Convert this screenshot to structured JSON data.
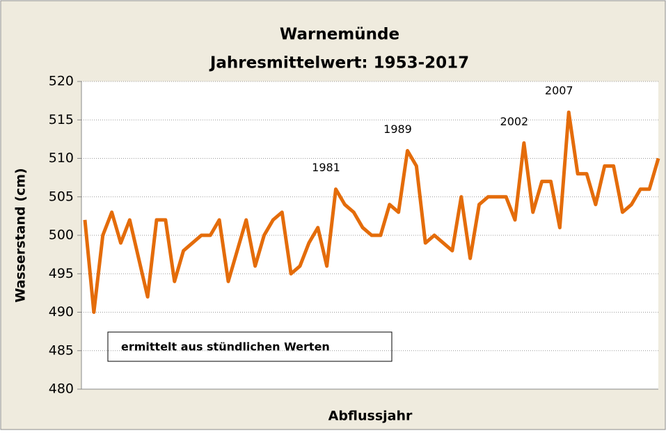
{
  "chart_data": {
    "type": "line",
    "title": "Warnemünde",
    "subtitle": "Jahresmittelwert: 1953-2017",
    "x_label": "Abflussjahr",
    "y_label": "Wasserstand (cm)",
    "note": "ermittelt aus stündlichen Werten",
    "annotations": [
      "1981",
      "1989",
      "2002",
      "2007"
    ],
    "series": [
      {
        "color": "#e46c0a",
        "values": [
          502,
          490,
          500,
          503,
          499,
          502,
          497,
          492,
          502,
          502,
          494,
          498,
          499,
          500,
          500,
          502,
          494,
          498,
          502,
          496,
          500,
          502,
          503,
          495,
          496,
          499,
          501,
          496,
          506,
          504,
          503,
          501,
          500,
          500,
          504,
          503,
          511,
          509,
          499,
          500,
          499,
          498,
          505,
          497,
          504,
          505,
          505,
          505,
          502,
          512,
          503,
          507,
          507,
          501,
          516,
          508,
          508,
          504,
          509,
          509,
          503,
          504,
          506,
          506,
          510
        ]
      }
    ],
    "ylim": [
      480,
      520
    ],
    "yticks": [
      480,
      485,
      490,
      495,
      500,
      505,
      510,
      515,
      520
    ],
    "grid": true
  }
}
